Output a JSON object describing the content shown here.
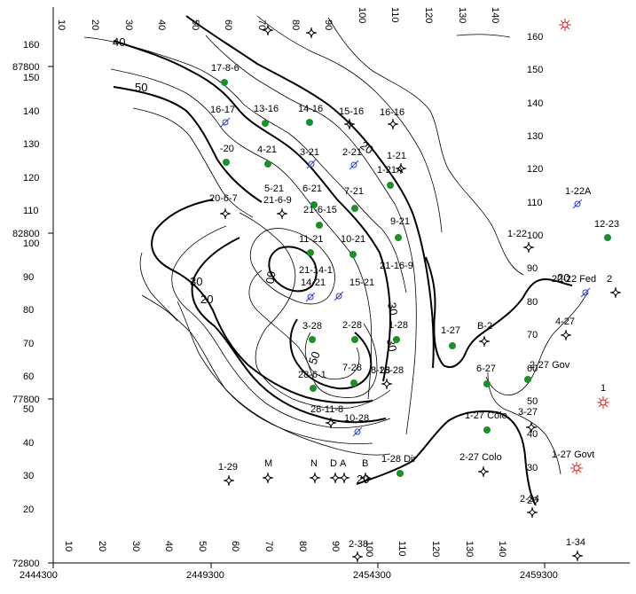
{
  "map": {
    "x_axis_labels": [
      "2444300",
      "2449300",
      "2454300",
      "2459300"
    ],
    "y_axis_labels": [
      "87800",
      "82800",
      "77800",
      "72800"
    ],
    "right_scale": [
      "160",
      "150",
      "140",
      "130",
      "120",
      "110",
      "100",
      "90",
      "80",
      "70",
      "60",
      "50",
      "40",
      "30",
      "20"
    ],
    "left_scale": [
      "160",
      "150",
      "140",
      "130",
      "120",
      "110",
      "100",
      "90",
      "80",
      "70",
      "60",
      "50",
      "40",
      "30",
      "20"
    ],
    "top_scale": [
      "10",
      "20",
      "30",
      "40",
      "50",
      "60",
      "70",
      "80",
      "90",
      "100",
      "110",
      "120",
      "130",
      "140"
    ],
    "bottom_scale": [
      "10",
      "20",
      "30",
      "40",
      "50",
      "60",
      "70",
      "80",
      "90",
      "100",
      "110",
      "120",
      "130",
      "140"
    ],
    "contour_labels": [
      "40",
      "50",
      "20",
      "60",
      "30",
      "20",
      "20",
      "50",
      "30",
      "20",
      "30"
    ],
    "wells": [
      {
        "name": "17-8-6",
        "symbol": "producer"
      },
      {
        "name": "16-17",
        "symbol": "injector"
      },
      {
        "name": "13-16",
        "symbol": "producer"
      },
      {
        "name": "14-16",
        "symbol": "producer"
      },
      {
        "name": "15-16",
        "symbol": "dry-hole"
      },
      {
        "name": "16-16",
        "symbol": "dry-hole"
      },
      {
        "name": "-20",
        "symbol": "producer"
      },
      {
        "name": "4-21",
        "symbol": "producer"
      },
      {
        "name": "3-21",
        "symbol": "injector"
      },
      {
        "name": "2-21",
        "symbol": "injector"
      },
      {
        "name": "1-21",
        "symbol": "producer"
      },
      {
        "name": "1-21A",
        "symbol": "dry-hole"
      },
      {
        "name": "5-21",
        "symbol": "none"
      },
      {
        "name": "6-21",
        "symbol": "producer"
      },
      {
        "name": "7-21",
        "symbol": "producer"
      },
      {
        "name": "20-6-7",
        "symbol": "dry-hole"
      },
      {
        "name": "21-6-9",
        "symbol": "dry-hole"
      },
      {
        "name": "21-6-15",
        "symbol": "producer"
      },
      {
        "name": "9-21",
        "symbol": "producer"
      },
      {
        "name": "11-21",
        "symbol": "producer"
      },
      {
        "name": "10-21",
        "symbol": "producer"
      },
      {
        "name": "21-14-1",
        "symbol": "none"
      },
      {
        "name": "21-16-9",
        "symbol": "none"
      },
      {
        "name": "14-21",
        "symbol": "injector"
      },
      {
        "name": "15-21",
        "symbol": "injector"
      },
      {
        "name": "16-28",
        "symbol": "none"
      },
      {
        "name": "1-28",
        "symbol": "producer"
      },
      {
        "name": "3-28",
        "symbol": "producer"
      },
      {
        "name": "2-28",
        "symbol": "producer"
      },
      {
        "name": "7-28",
        "symbol": "producer"
      },
      {
        "name": "28-6-1",
        "symbol": "producer"
      },
      {
        "name": "8-28",
        "symbol": "dry-hole"
      },
      {
        "name": "28-11-8",
        "symbol": "dry-hole"
      },
      {
        "name": "10-28",
        "symbol": "injector"
      },
      {
        "name": "1-27",
        "symbol": "producer"
      },
      {
        "name": "B-2",
        "symbol": "dry-hole"
      },
      {
        "name": "6-27",
        "symbol": "producer"
      },
      {
        "name": "2-27 Gov",
        "symbol": "producer"
      },
      {
        "name": "4-27",
        "symbol": "dry-hole"
      },
      {
        "name": "1-27 Colo",
        "symbol": "producer"
      },
      {
        "name": "3-27",
        "symbol": "dry-hole"
      },
      {
        "name": "2-27 Colo",
        "symbol": "dry-hole"
      },
      {
        "name": "1-27 Govt",
        "symbol": "gas"
      },
      {
        "name": "1-28 Dir",
        "symbol": "producer"
      },
      {
        "name": "1-29",
        "symbol": "dry-hole"
      },
      {
        "name": "M",
        "symbol": "dry-hole"
      },
      {
        "name": "N",
        "symbol": "dry-hole"
      },
      {
        "name": "D",
        "symbol": "dry-hole"
      },
      {
        "name": "A",
        "symbol": "dry-hole"
      },
      {
        "name": "B",
        "symbol": "dry-hole"
      },
      {
        "name": "2-34",
        "symbol": "dry-hole"
      },
      {
        "name": "2-38",
        "symbol": "dry-hole"
      },
      {
        "name": "1-34",
        "symbol": "dry-hole"
      },
      {
        "name": "1-22A",
        "symbol": "injector"
      },
      {
        "name": "12-23",
        "symbol": "producer"
      },
      {
        "name": "1-22",
        "symbol": "dry-hole"
      },
      {
        "name": "20-22 Fed",
        "symbol": "injector"
      },
      {
        "name": "2",
        "symbol": "dry-hole"
      },
      {
        "name": "1",
        "symbol": "gas"
      }
    ],
    "colors": {
      "producer": "#1a8f2a",
      "injector": "#2b3fd0",
      "gas": "#e02020",
      "contour": "#000000"
    }
  }
}
